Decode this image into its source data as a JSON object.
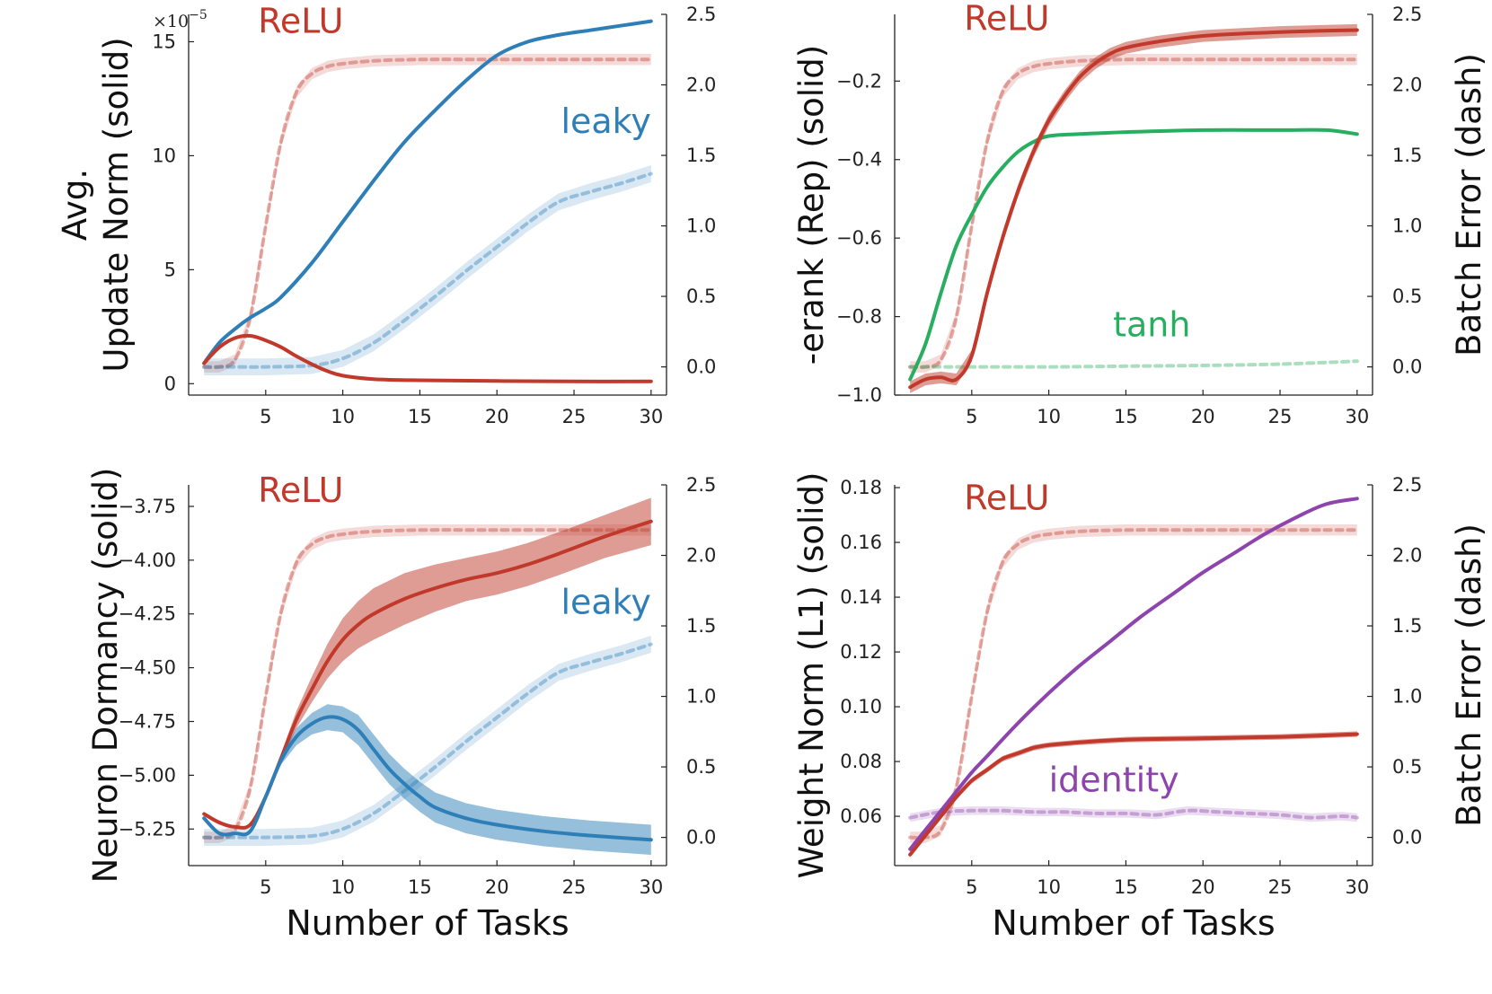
{
  "chart_data": [
    {
      "type": "line",
      "panel": "top-left",
      "ylabel_lines": [
        "Avg.",
        "Update Norm (solid)"
      ],
      "ylabel2": "",
      "xlabel": "",
      "y_exponent": "×10",
      "y_exponent_power": "−5",
      "xlim": [
        0,
        31
      ],
      "xticks": [
        5,
        10,
        15,
        20,
        25,
        30
      ],
      "ylim": [
        -0.5,
        16.2
      ],
      "yticks": [
        0,
        5,
        10,
        15
      ],
      "ytick_labels": [
        "0",
        "5",
        "10",
        "15"
      ],
      "y2lim": [
        -0.2,
        2.5
      ],
      "y2ticks": [
        0.0,
        0.5,
        1.0,
        1.5,
        2.0,
        2.5
      ],
      "y2tick_labels": [
        "0.0",
        "0.5",
        "1.0",
        "1.5",
        "2.0",
        "2.5"
      ],
      "annotations": [
        {
          "text": "ReLU",
          "color": "#c0392b",
          "x": 4.5,
          "y": 15.4,
          "anchor": "start"
        },
        {
          "text": "leaky",
          "color": "#2e7fb8",
          "x": 30,
          "y": 11.0,
          "anchor": "end"
        }
      ],
      "series": [
        {
          "name": "ReLU batch error",
          "axis": "right",
          "style": "dashed",
          "color": "#c0392b",
          "band": 0.04,
          "x": [
            1,
            2,
            3,
            4,
            5,
            6,
            7,
            8,
            9,
            10,
            12,
            15,
            20,
            25,
            30
          ],
          "y": [
            0,
            0,
            0.05,
            0.35,
            1.0,
            1.6,
            1.95,
            2.08,
            2.13,
            2.15,
            2.17,
            2.18,
            2.18,
            2.18,
            2.18
          ]
        },
        {
          "name": "leaky batch error",
          "axis": "right",
          "style": "dashed",
          "color": "#2e7fb8",
          "band": 0.06,
          "x": [
            1,
            3,
            5,
            8,
            10,
            12,
            14,
            16,
            18,
            20,
            22,
            24,
            26,
            28,
            30
          ],
          "y": [
            0,
            0,
            0,
            0.01,
            0.06,
            0.17,
            0.33,
            0.5,
            0.68,
            0.85,
            1.02,
            1.17,
            1.24,
            1.3,
            1.37
          ]
        },
        {
          "name": "leaky update norm",
          "axis": "left",
          "style": "solid",
          "color": "#2e7fb8",
          "band": 0,
          "x": [
            1,
            2,
            3,
            4,
            5,
            6,
            8,
            10,
            12,
            14,
            16,
            18,
            20,
            22,
            24,
            26,
            28,
            30
          ],
          "y": [
            0.9,
            1.8,
            2.4,
            2.9,
            3.3,
            3.8,
            5.3,
            7.1,
            8.9,
            10.6,
            12.0,
            13.3,
            14.4,
            15.0,
            15.3,
            15.5,
            15.7,
            15.9
          ]
        },
        {
          "name": "ReLU update norm",
          "axis": "left",
          "style": "solid",
          "color": "#c0392b",
          "band": 0,
          "x": [
            1,
            2,
            3,
            4,
            5,
            6,
            7,
            8,
            9,
            10,
            12,
            15,
            20,
            25,
            30
          ],
          "y": [
            0.9,
            1.6,
            2.0,
            2.1,
            1.9,
            1.6,
            1.2,
            0.85,
            0.55,
            0.35,
            0.2,
            0.15,
            0.12,
            0.1,
            0.1
          ]
        }
      ]
    },
    {
      "type": "line",
      "panel": "top-right",
      "ylabel_lines": [
        "-erank (Rep) (solid)"
      ],
      "ylabel2": "Batch Error (dash)",
      "xlabel": "",
      "xlim": [
        0,
        31
      ],
      "xticks": [
        5,
        10,
        15,
        20,
        25,
        30
      ],
      "ylim": [
        -1.0,
        -0.03
      ],
      "yticks": [
        -1.0,
        -0.8,
        -0.6,
        -0.4,
        -0.2
      ],
      "ytick_labels": [
        "−1.0",
        "−0.8",
        "−0.6",
        "−0.4",
        "−0.2"
      ],
      "y2lim": [
        -0.2,
        2.5
      ],
      "y2ticks": [
        0.0,
        0.5,
        1.0,
        1.5,
        2.0,
        2.5
      ],
      "y2tick_labels": [
        "0.0",
        "0.5",
        "1.0",
        "1.5",
        "2.0",
        "2.5"
      ],
      "annotations": [
        {
          "text": "ReLU",
          "color": "#c0392b",
          "x": 4.5,
          "y": -0.07,
          "anchor": "start"
        },
        {
          "text": "tanh",
          "color": "#27ae60",
          "x": 19.2,
          "y": -0.85,
          "anchor": "end"
        }
      ],
      "series": [
        {
          "name": "ReLU batch error",
          "axis": "right",
          "style": "dashed",
          "color": "#c0392b",
          "band": 0.04,
          "x": [
            1,
            2,
            3,
            4,
            5,
            6,
            7,
            8,
            9,
            10,
            12,
            15,
            20,
            25,
            30
          ],
          "y": [
            0,
            0,
            0.05,
            0.35,
            1.0,
            1.6,
            1.95,
            2.08,
            2.13,
            2.15,
            2.17,
            2.18,
            2.18,
            2.18,
            2.18
          ]
        },
        {
          "name": "tanh batch error",
          "axis": "right",
          "style": "dashed",
          "color": "#27ae60",
          "band": 0,
          "x": [
            1,
            5,
            10,
            15,
            20,
            25,
            30
          ],
          "y": [
            0,
            0,
            0,
            0.005,
            0.01,
            0.02,
            0.04
          ]
        },
        {
          "name": "tanh erank",
          "axis": "left",
          "style": "solid",
          "color": "#27ae60",
          "band": 0,
          "x": [
            1,
            2,
            3,
            4,
            5,
            6,
            7,
            8,
            9,
            10,
            12,
            15,
            20,
            25,
            28,
            30
          ],
          "y": [
            -0.96,
            -0.87,
            -0.74,
            -0.62,
            -0.54,
            -0.47,
            -0.42,
            -0.38,
            -0.355,
            -0.34,
            -0.335,
            -0.33,
            -0.325,
            -0.325,
            -0.325,
            -0.335
          ]
        },
        {
          "name": "ReLU erank",
          "axis": "left",
          "style": "solid",
          "color": "#c0392b",
          "band": 0.015,
          "x": [
            1,
            2,
            3,
            4,
            5,
            6,
            7,
            8,
            9,
            10,
            11,
            12,
            13,
            14,
            15,
            17,
            20,
            25,
            30
          ],
          "y": [
            -0.98,
            -0.96,
            -0.955,
            -0.96,
            -0.9,
            -0.74,
            -0.6,
            -0.48,
            -0.38,
            -0.3,
            -0.24,
            -0.19,
            -0.155,
            -0.13,
            -0.115,
            -0.1,
            -0.085,
            -0.075,
            -0.07
          ]
        }
      ]
    },
    {
      "type": "line",
      "panel": "bottom-left",
      "ylabel_lines": [
        "Neuron Dormancy (solid)"
      ],
      "ylabel2": "",
      "xlabel": "Number of Tasks",
      "xlim": [
        0,
        31
      ],
      "xticks": [
        5,
        10,
        15,
        20,
        25,
        30
      ],
      "ylim": [
        -5.42,
        -3.65
      ],
      "yticks": [
        -5.25,
        -5.0,
        -4.75,
        -4.5,
        -4.25,
        -4.0,
        -3.75
      ],
      "ytick_labels": [
        "−5.25",
        "−5.00",
        "−4.75",
        "−4.50",
        "−4.25",
        "−4.00",
        "−3.75"
      ],
      "y2lim": [
        -0.2,
        2.5
      ],
      "y2ticks": [
        0.0,
        0.5,
        1.0,
        1.5,
        2.0,
        2.5
      ],
      "y2tick_labels": [
        "0.0",
        "0.5",
        "1.0",
        "1.5",
        "2.0",
        "2.5"
      ],
      "annotations": [
        {
          "text": "ReLU",
          "color": "#c0392b",
          "x": 4.5,
          "y": -3.73,
          "anchor": "start"
        },
        {
          "text": "leaky",
          "color": "#2e7fb8",
          "x": 30,
          "y": -4.25,
          "anchor": "end"
        }
      ],
      "series": [
        {
          "name": "ReLU batch error",
          "axis": "right",
          "style": "dashed",
          "color": "#c0392b",
          "band": 0.04,
          "x": [
            1,
            2,
            3,
            4,
            5,
            6,
            7,
            8,
            9,
            10,
            12,
            15,
            20,
            25,
            30
          ],
          "y": [
            0,
            0,
            0.05,
            0.35,
            1.0,
            1.6,
            1.95,
            2.08,
            2.13,
            2.15,
            2.17,
            2.18,
            2.18,
            2.18,
            2.18
          ]
        },
        {
          "name": "leaky batch error",
          "axis": "right",
          "style": "dashed",
          "color": "#2e7fb8",
          "band": 0.06,
          "x": [
            1,
            3,
            5,
            8,
            10,
            12,
            14,
            16,
            18,
            20,
            22,
            24,
            26,
            28,
            30
          ],
          "y": [
            0,
            0,
            0,
            0.01,
            0.06,
            0.17,
            0.33,
            0.5,
            0.68,
            0.85,
            1.02,
            1.17,
            1.24,
            1.3,
            1.37
          ]
        },
        {
          "name": "ReLU dormancy",
          "axis": "left",
          "style": "solid",
          "color": "#c0392b",
          "band": [
            0,
            0,
            0,
            0,
            0.01,
            0.02,
            0.04,
            0.06,
            0.08,
            0.1,
            0.11,
            0.12,
            0.12,
            0.11,
            0.1,
            0.1,
            0.1,
            0.1,
            0.1,
            0.11
          ],
          "x": [
            1,
            2,
            3,
            4,
            5,
            6,
            7,
            8,
            9,
            10,
            11,
            12,
            14,
            16,
            18,
            20,
            22,
            24,
            27,
            30
          ],
          "y": [
            -5.18,
            -5.22,
            -5.24,
            -5.23,
            -5.1,
            -4.92,
            -4.74,
            -4.6,
            -4.47,
            -4.37,
            -4.3,
            -4.25,
            -4.18,
            -4.13,
            -4.09,
            -4.06,
            -4.02,
            -3.97,
            -3.89,
            -3.82
          ]
        },
        {
          "name": "leaky dormancy",
          "axis": "left",
          "style": "solid",
          "color": "#2e7fb8",
          "band": [
            0,
            0,
            0,
            0,
            0.01,
            0.02,
            0.04,
            0.05,
            0.06,
            0.06,
            0.07,
            0.07,
            0.07,
            0.07,
            0.07,
            0.07,
            0.07,
            0.07,
            0.07,
            0.07,
            0.07
          ],
          "x": [
            1,
            2,
            3,
            4,
            5,
            6,
            7,
            8,
            9,
            10,
            11,
            12,
            13,
            14,
            15,
            16,
            18,
            20,
            23,
            26,
            30
          ],
          "y": [
            -5.2,
            -5.27,
            -5.27,
            -5.26,
            -5.1,
            -4.93,
            -4.82,
            -4.76,
            -4.73,
            -4.74,
            -4.79,
            -4.88,
            -4.97,
            -5.04,
            -5.1,
            -5.15,
            -5.2,
            -5.23,
            -5.26,
            -5.28,
            -5.3
          ]
        }
      ]
    },
    {
      "type": "line",
      "panel": "bottom-right",
      "ylabel_lines": [
        "Weight Norm (L1) (solid)"
      ],
      "ylabel2": "Batch Error (dash)",
      "xlabel": "Number of Tasks",
      "xlim": [
        0,
        31
      ],
      "xticks": [
        5,
        10,
        15,
        20,
        25,
        30
      ],
      "ylim": [
        0.042,
        0.181
      ],
      "yticks": [
        0.06,
        0.08,
        0.1,
        0.12,
        0.14,
        0.16,
        0.18
      ],
      "ytick_labels": [
        "0.06",
        "0.08",
        "0.10",
        "0.12",
        "0.14",
        "0.16",
        "0.18"
      ],
      "y2lim": [
        -0.2,
        2.5
      ],
      "y2ticks": [
        0.0,
        0.5,
        1.0,
        1.5,
        2.0,
        2.5
      ],
      "y2tick_labels": [
        "0.0",
        "0.5",
        "1.0",
        "1.5",
        "2.0",
        "2.5"
      ],
      "annotations": [
        {
          "text": "ReLU",
          "color": "#c0392b",
          "x": 4.5,
          "y": 0.172,
          "anchor": "start"
        },
        {
          "text": "identity",
          "color": "#8e44ad",
          "x": 10,
          "y": 0.069,
          "anchor": "start"
        }
      ],
      "series": [
        {
          "name": "ReLU batch error",
          "axis": "right",
          "style": "dashed",
          "color": "#c0392b",
          "band": 0.04,
          "x": [
            1,
            2,
            3,
            4,
            5,
            6,
            7,
            8,
            9,
            10,
            12,
            15,
            20,
            25,
            30
          ],
          "y": [
            0,
            0,
            0.05,
            0.35,
            1.0,
            1.6,
            1.95,
            2.08,
            2.13,
            2.15,
            2.17,
            2.18,
            2.18,
            2.18,
            2.18
          ]
        },
        {
          "name": "identity batch error",
          "axis": "right",
          "style": "dashed",
          "color": "#8e44ad",
          "band": 0.03,
          "x": [
            1,
            3,
            5,
            7,
            9,
            11,
            13,
            15,
            17,
            19,
            21,
            23,
            25,
            27,
            29,
            30
          ],
          "y": [
            0.14,
            0.18,
            0.19,
            0.19,
            0.18,
            0.18,
            0.17,
            0.17,
            0.16,
            0.19,
            0.18,
            0.17,
            0.16,
            0.14,
            0.15,
            0.14
          ]
        },
        {
          "name": "identity weight norm",
          "axis": "left",
          "style": "solid",
          "color": "#8e44ad",
          "band": 0,
          "x": [
            1,
            2,
            3,
            4,
            5,
            6,
            8,
            10,
            12,
            14,
            16,
            18,
            20,
            22,
            24,
            26,
            28,
            30
          ],
          "y": [
            0.048,
            0.055,
            0.062,
            0.069,
            0.076,
            0.082,
            0.094,
            0.105,
            0.115,
            0.124,
            0.133,
            0.141,
            0.149,
            0.156,
            0.163,
            0.169,
            0.174,
            0.176
          ]
        },
        {
          "name": "ReLU weight norm",
          "axis": "left",
          "style": "solid",
          "color": "#c0392b",
          "band": 0.001,
          "x": [
            1,
            2,
            3,
            4,
            5,
            6,
            7,
            8,
            9,
            10,
            12,
            15,
            20,
            25,
            30
          ],
          "y": [
            0.046,
            0.053,
            0.06,
            0.067,
            0.073,
            0.077,
            0.081,
            0.083,
            0.085,
            0.086,
            0.087,
            0.088,
            0.0885,
            0.089,
            0.09
          ]
        }
      ]
    }
  ]
}
